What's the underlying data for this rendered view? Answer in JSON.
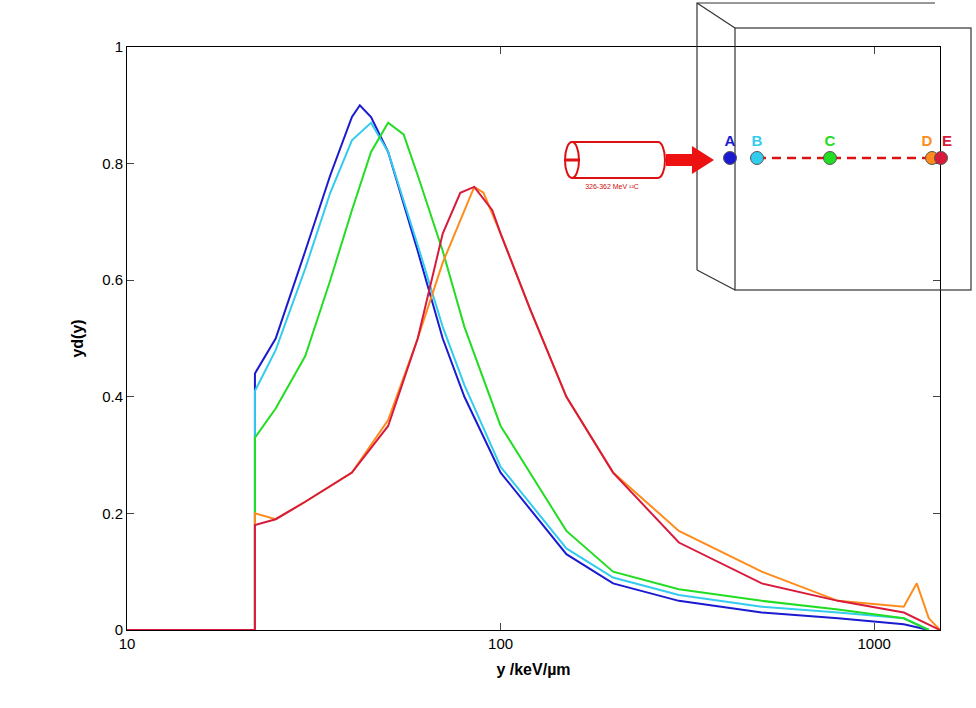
{
  "chart_data": {
    "type": "line",
    "x_label": "y /keV/µm",
    "y_label": "yd(y)",
    "log": "x",
    "grid": false,
    "xlim": [
      10,
      1500
    ],
    "xticks": [
      10,
      100,
      1000
    ],
    "ylim": [
      0,
      1
    ],
    "yticks": [
      0,
      {
        "value": 0.2,
        "label": "0.2"
      },
      {
        "value": 0.4,
        "label": "0.4"
      },
      {
        "value": 0.6,
        "label": "0.6"
      },
      {
        "value": 0.8,
        "label": "0.8"
      },
      1
    ],
    "series": [
      {
        "name": "A",
        "color": "#1a1ad0",
        "x": [
          10,
          22,
          22,
          25,
          30,
          35,
          40,
          42,
          45,
          50,
          60,
          70,
          80,
          100,
          150,
          200,
          300,
          500,
          800,
          1200,
          1400
        ],
        "values": [
          0,
          0,
          0.44,
          0.5,
          0.65,
          0.78,
          0.88,
          0.9,
          0.88,
          0.82,
          0.65,
          0.5,
          0.4,
          0.27,
          0.13,
          0.08,
          0.05,
          0.03,
          0.02,
          0.01,
          0
        ]
      },
      {
        "name": "B",
        "color": "#33ccee",
        "x": [
          10,
          22,
          22,
          25,
          30,
          35,
          40,
          45,
          50,
          60,
          70,
          80,
          100,
          150,
          200,
          300,
          500,
          800,
          1200,
          1400
        ],
        "values": [
          0,
          0,
          0.41,
          0.48,
          0.62,
          0.75,
          0.84,
          0.87,
          0.82,
          0.66,
          0.52,
          0.42,
          0.28,
          0.14,
          0.09,
          0.06,
          0.04,
          0.03,
          0.02,
          0
        ]
      },
      {
        "name": "C",
        "color": "#22dd22",
        "x": [
          10,
          22,
          22,
          25,
          30,
          35,
          40,
          45,
          50,
          55,
          60,
          70,
          80,
          100,
          150,
          200,
          300,
          500,
          800,
          1200,
          1400
        ],
        "values": [
          0,
          0,
          0.33,
          0.38,
          0.47,
          0.6,
          0.72,
          0.82,
          0.87,
          0.85,
          0.78,
          0.65,
          0.52,
          0.35,
          0.17,
          0.1,
          0.07,
          0.05,
          0.035,
          0.02,
          0
        ]
      },
      {
        "name": "D",
        "color": "#ff8c1a",
        "x": [
          10,
          22,
          22,
          25,
          30,
          40,
          50,
          60,
          70,
          80,
          85,
          90,
          100,
          120,
          150,
          200,
          300,
          500,
          800,
          1200,
          1300,
          1400,
          1500
        ],
        "values": [
          0,
          0,
          0.2,
          0.19,
          0.22,
          0.27,
          0.36,
          0.5,
          0.63,
          0.72,
          0.76,
          0.75,
          0.68,
          0.55,
          0.4,
          0.27,
          0.17,
          0.1,
          0.05,
          0.04,
          0.08,
          0.02,
          0
        ]
      },
      {
        "name": "E",
        "color": "#d81b3c",
        "x": [
          10,
          22,
          22,
          25,
          30,
          40,
          50,
          60,
          70,
          78,
          85,
          95,
          100,
          120,
          150,
          200,
          300,
          500,
          800,
          1200,
          1500
        ],
        "values": [
          0,
          0,
          0.18,
          0.19,
          0.22,
          0.27,
          0.35,
          0.5,
          0.68,
          0.75,
          0.76,
          0.72,
          0.68,
          0.55,
          0.4,
          0.27,
          0.15,
          0.08,
          0.05,
          0.03,
          0
        ]
      }
    ],
    "inset": {
      "beam_label": "326-362 MeV",
      "ion": "¹²C"
    }
  }
}
